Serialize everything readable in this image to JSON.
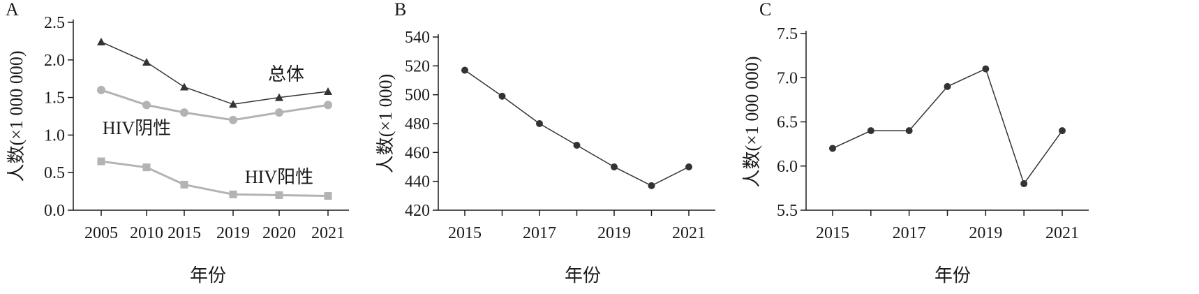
{
  "chart_data": [
    {
      "panel": "A",
      "type": "line",
      "categories": [
        "2005",
        "2010",
        "2015",
        "2019",
        "2020",
        "2021"
      ],
      "ylabel": "人数(×1 000 000)",
      "xlabel": "年份",
      "ylim": [
        0,
        2.5
      ],
      "yticks": [
        "0.0",
        "0.5",
        "1.0",
        "1.5",
        "2.0",
        "2.5"
      ],
      "series": [
        {
          "name": "总体",
          "values": [
            2.24,
            1.97,
            1.64,
            1.41,
            1.5,
            1.58
          ],
          "color": "#333333",
          "marker": "triangle"
        },
        {
          "name": "HIV阴性",
          "values": [
            1.6,
            1.4,
            1.3,
            1.2,
            1.3,
            1.4
          ],
          "color": "#b3b3b3",
          "marker": "circle"
        },
        {
          "name": "HIV阳性",
          "values": [
            0.65,
            0.57,
            0.34,
            0.21,
            0.2,
            0.19
          ],
          "color": "#b3b3b3",
          "marker": "square"
        }
      ]
    },
    {
      "panel": "B",
      "type": "line",
      "x": [
        2015,
        2016,
        2017,
        2018,
        2019,
        2020,
        2021
      ],
      "xticks": [
        "2015",
        "2017",
        "2019",
        "2021"
      ],
      "ylabel": "人数(×1 000)",
      "xlabel": "年份",
      "ylim": [
        420,
        540
      ],
      "yticks": [
        "420",
        "440",
        "460",
        "480",
        "500",
        "520",
        "540"
      ],
      "series": [
        {
          "values": [
            517,
            499,
            480,
            465,
            450,
            437,
            450
          ],
          "color": "#333333",
          "marker": "circle"
        }
      ]
    },
    {
      "panel": "C",
      "type": "line",
      "x": [
        2015,
        2016,
        2017,
        2018,
        2019,
        2020,
        2021
      ],
      "xticks": [
        "2015",
        "2017",
        "2019",
        "2021"
      ],
      "ylabel": "人数(×1 000 000)",
      "xlabel": "年份",
      "ylim": [
        5.5,
        7.5
      ],
      "yticks": [
        "5.5",
        "6.0",
        "6.5",
        "7.0",
        "7.5"
      ],
      "series": [
        {
          "values": [
            6.2,
            6.4,
            6.4,
            6.9,
            7.1,
            5.8,
            6.4
          ],
          "color": "#333333",
          "marker": "circle"
        }
      ]
    }
  ]
}
